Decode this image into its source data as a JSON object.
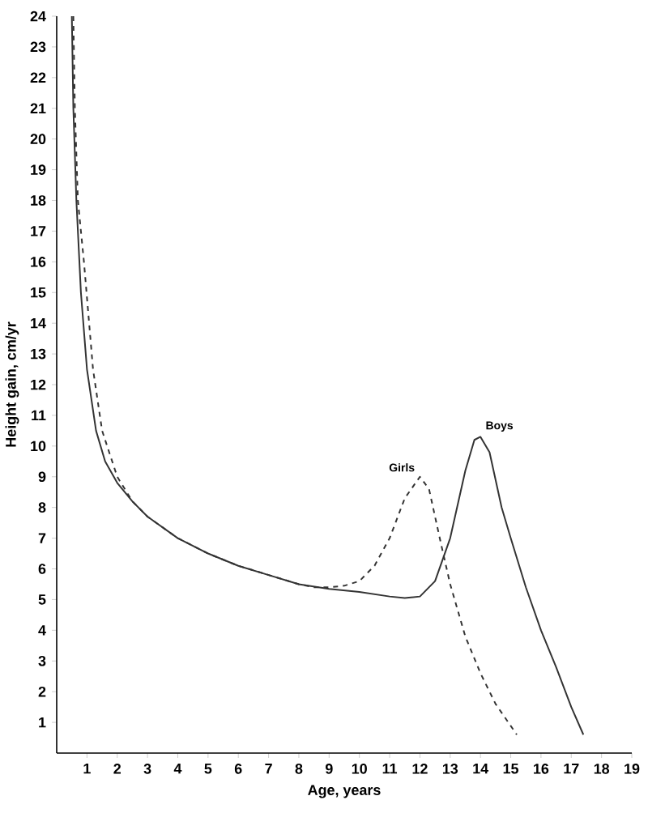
{
  "chart_data": {
    "type": "line",
    "xlabel": "Age, years",
    "ylabel": "Height gain, cm/yr",
    "xlim": [
      0,
      19
    ],
    "ylim": [
      0,
      24
    ],
    "xticks": [
      1,
      2,
      3,
      4,
      5,
      6,
      7,
      8,
      9,
      10,
      11,
      12,
      13,
      14,
      15,
      16,
      17,
      18,
      19
    ],
    "yticks": [
      1,
      2,
      3,
      4,
      5,
      6,
      7,
      8,
      9,
      10,
      11,
      12,
      13,
      14,
      15,
      16,
      17,
      18,
      19,
      20,
      21,
      22,
      23,
      24
    ],
    "grid": false,
    "marker": "none",
    "series": [
      {
        "name": "Boys",
        "color": "#333333",
        "line_style": "solid",
        "x": [
          0.5,
          0.55,
          0.65,
          0.8,
          1.0,
          1.3,
          1.6,
          2.0,
          2.5,
          3.0,
          4.0,
          5.0,
          6.0,
          7.0,
          8.0,
          9.0,
          10.0,
          11.0,
          11.5,
          12.0,
          12.5,
          13.0,
          13.5,
          13.8,
          14.0,
          14.3,
          14.7,
          15.0,
          15.5,
          16.0,
          16.5,
          17.0,
          17.4
        ],
        "values": [
          24,
          21,
          18,
          15,
          12.5,
          10.5,
          9.5,
          8.8,
          8.2,
          7.7,
          7.0,
          6.5,
          6.1,
          5.8,
          5.5,
          5.35,
          5.25,
          5.1,
          5.05,
          5.1,
          5.6,
          7.0,
          9.2,
          10.2,
          10.3,
          9.8,
          8.0,
          7.0,
          5.4,
          4.0,
          2.8,
          1.5,
          0.6
        ]
      },
      {
        "name": "Girls",
        "color": "#333333",
        "line_style": "dashed",
        "x": [
          0.55,
          0.6,
          0.7,
          0.9,
          1.2,
          1.5,
          2.0,
          2.5,
          3.0,
          4.0,
          5.0,
          6.0,
          7.0,
          8.0,
          8.5,
          9.0,
          9.5,
          10.0,
          10.5,
          11.0,
          11.5,
          12.0,
          12.3,
          12.7,
          13.0,
          13.5,
          14.0,
          14.5,
          15.2
        ],
        "values": [
          24,
          21,
          18,
          16,
          12.5,
          10.5,
          9.0,
          8.2,
          7.7,
          7.0,
          6.5,
          6.1,
          5.8,
          5.5,
          5.4,
          5.4,
          5.45,
          5.6,
          6.1,
          7.0,
          8.3,
          9.0,
          8.6,
          6.8,
          5.5,
          3.8,
          2.6,
          1.6,
          0.6
        ]
      }
    ]
  }
}
